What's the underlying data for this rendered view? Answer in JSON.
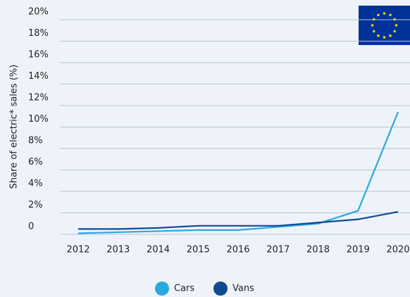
{
  "chart_data": {
    "type": "line",
    "ylabel": "Share of electric* sales (%)",
    "categories": [
      "2012",
      "2013",
      "2014",
      "2015",
      "2016",
      "2017",
      "2018",
      "2019",
      "2020"
    ],
    "series": [
      {
        "name": "Cars",
        "color": "#29a8e0",
        "values": [
          0.1,
          0.2,
          0.3,
          0.4,
          0.4,
          0.7,
          1.0,
          2.2,
          11.4
        ]
      },
      {
        "name": "Vans",
        "color": "#0f4a92",
        "values": [
          0.5,
          0.5,
          0.6,
          0.8,
          0.8,
          0.8,
          1.1,
          1.4,
          2.1
        ]
      }
    ],
    "ylim": [
      0,
      20
    ],
    "yticks": [
      0,
      {
        "value": 2,
        "label": "2%"
      },
      {
        "value": 4,
        "label": "4%"
      },
      {
        "value": 6,
        "label": "6%"
      },
      {
        "value": 8,
        "label": "8%"
      },
      {
        "value": 10,
        "label": "10%"
      },
      {
        "value": 12,
        "label": "12%"
      },
      {
        "value": 14,
        "label": "14%"
      },
      {
        "value": 16,
        "label": "16%"
      },
      {
        "value": 18,
        "label": "18%"
      },
      {
        "value": 20,
        "label": "20%"
      }
    ],
    "grid": true
  }
}
